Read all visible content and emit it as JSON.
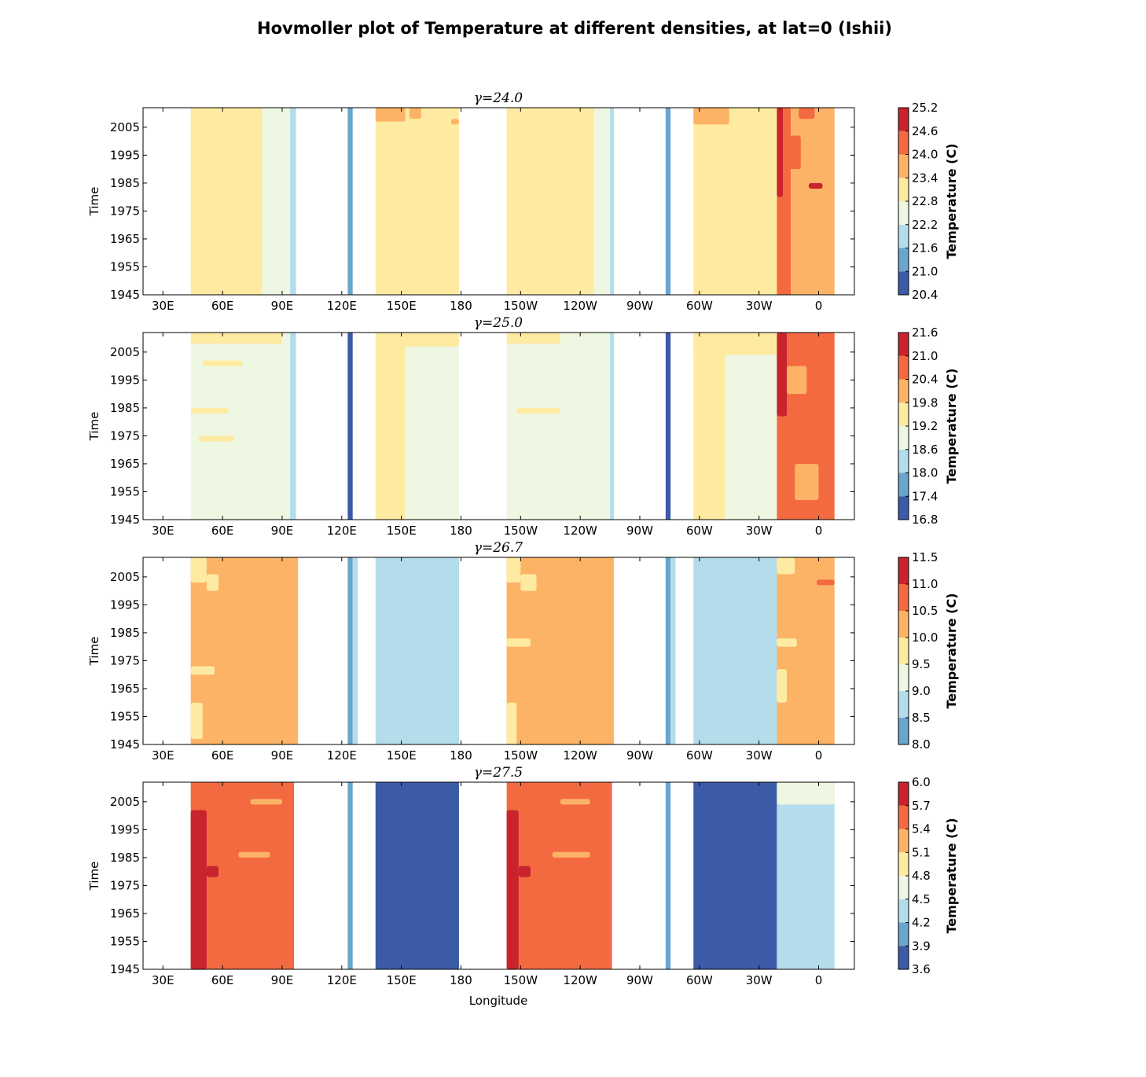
{
  "title": "Hovmoller plot of Temperature at different densities, at lat=0 (Ishii)",
  "colors": [
    "#3b5ba6",
    "#6aa5cd",
    "#b4ddeb",
    "#eef7e2",
    "#feeba1",
    "#fdb366",
    "#f36a41",
    "#c9242d"
  ],
  "chart_data": [
    {
      "type": "heatmap",
      "title": "γ=24.0",
      "xlabel": "",
      "ylabel": "Time",
      "x_ticks": [
        "30E",
        "60E",
        "90E",
        "120E",
        "150E",
        "180",
        "150W",
        "120W",
        "90W",
        "60W",
        "30W",
        "0"
      ],
      "y_ticks": [
        "1945",
        "1955",
        "1965",
        "1975",
        "1985",
        "1995",
        "2005"
      ],
      "colorbar": {
        "label": "Temperature (C)",
        "levels": [
          "20.4",
          "21.0",
          "21.6",
          "22.2",
          "22.8",
          "23.4",
          "24.0",
          "24.6",
          "25.2"
        ]
      },
      "bands": [
        {
          "lon": [
            44,
            80
          ],
          "level": 4
        },
        {
          "lon": [
            80,
            94
          ],
          "level": 3
        },
        {
          "lon": [
            94,
            97
          ],
          "level": 2
        },
        {
          "lon": [
            123,
            125.5
          ],
          "level": 1
        },
        {
          "lon": [
            137,
            179
          ],
          "level": 4
        },
        {
          "lon": [
            203,
            247
          ],
          "level": 4
        },
        {
          "lon": [
            247,
            255
          ],
          "level": 3
        },
        {
          "lon": [
            255,
            257
          ],
          "level": 2
        },
        {
          "lon": [
            283,
            285.5
          ],
          "level": 1
        },
        {
          "lon": [
            297,
            339
          ],
          "level": 4
        },
        {
          "lon": [
            339,
            346
          ],
          "level": 6
        },
        {
          "lon": [
            346,
            368
          ],
          "level": 5
        }
      ],
      "patches": [
        {
          "lon": [
            137,
            152
          ],
          "time": [
            2007,
            2012
          ],
          "level": 5
        },
        {
          "lon": [
            154,
            160
          ],
          "time": [
            2008,
            2012
          ],
          "level": 5
        },
        {
          "lon": [
            175,
            179
          ],
          "time": [
            2006,
            2008
          ],
          "level": 5
        },
        {
          "lon": [
            297,
            315
          ],
          "time": [
            2006,
            2012
          ],
          "level": 5
        },
        {
          "lon": [
            339,
            342
          ],
          "time": [
            1980,
            2012
          ],
          "level": 7
        },
        {
          "lon": [
            345,
            351
          ],
          "time": [
            1990,
            2002
          ],
          "level": 6
        },
        {
          "lon": [
            350,
            358
          ],
          "time": [
            2008,
            2012
          ],
          "level": 6
        },
        {
          "lon": [
            355,
            362
          ],
          "time": [
            1983,
            1985
          ],
          "level": 7
        }
      ]
    },
    {
      "type": "heatmap",
      "title": "γ=25.0",
      "xlabel": "",
      "ylabel": "Time",
      "x_ticks": [
        "30E",
        "60E",
        "90E",
        "120E",
        "150E",
        "180",
        "150W",
        "120W",
        "90W",
        "60W",
        "30W",
        "0"
      ],
      "y_ticks": [
        "1945",
        "1955",
        "1965",
        "1975",
        "1985",
        "1995",
        "2005"
      ],
      "colorbar": {
        "label": "Temperature (C)",
        "levels": [
          "16.8",
          "17.4",
          "18.0",
          "18.6",
          "19.2",
          "19.8",
          "20.4",
          "21.0",
          "21.6"
        ]
      },
      "bands": [
        {
          "lon": [
            44,
            94
          ],
          "level": 3
        },
        {
          "lon": [
            94,
            97
          ],
          "level": 2
        },
        {
          "lon": [
            123,
            125.5
          ],
          "level": 0
        },
        {
          "lon": [
            137,
            152
          ],
          "level": 4
        },
        {
          "lon": [
            152,
            179
          ],
          "level": 3
        },
        {
          "lon": [
            203,
            255
          ],
          "level": 3
        },
        {
          "lon": [
            255,
            257
          ],
          "level": 2
        },
        {
          "lon": [
            283,
            285.5
          ],
          "level": 0
        },
        {
          "lon": [
            297,
            313
          ],
          "level": 4
        },
        {
          "lon": [
            313,
            339
          ],
          "level": 3
        },
        {
          "lon": [
            339,
            368
          ],
          "level": 6
        }
      ],
      "patches": [
        {
          "lon": [
            44,
            90
          ],
          "time": [
            2008,
            2012
          ],
          "level": 4
        },
        {
          "lon": [
            50,
            70
          ],
          "time": [
            2000,
            2002
          ],
          "level": 4
        },
        {
          "lon": [
            44,
            63
          ],
          "time": [
            1983,
            1985
          ],
          "level": 4
        },
        {
          "lon": [
            48,
            66
          ],
          "time": [
            1973,
            1975
          ],
          "level": 4
        },
        {
          "lon": [
            137,
            179
          ],
          "time": [
            2007,
            2012
          ],
          "level": 4
        },
        {
          "lon": [
            203,
            230
          ],
          "time": [
            2008,
            2012
          ],
          "level": 4
        },
        {
          "lon": [
            208,
            230
          ],
          "time": [
            1983,
            1985
          ],
          "level": 4
        },
        {
          "lon": [
            297,
            339
          ],
          "time": [
            2004,
            2012
          ],
          "level": 4
        },
        {
          "lon": [
            339,
            344
          ],
          "time": [
            1982,
            2012
          ],
          "level": 7
        },
        {
          "lon": [
            344,
            354
          ],
          "time": [
            1990,
            2000
          ],
          "level": 5
        },
        {
          "lon": [
            348,
            360
          ],
          "time": [
            1952,
            1965
          ],
          "level": 5
        }
      ]
    },
    {
      "type": "heatmap",
      "title": "γ=26.7",
      "xlabel": "",
      "ylabel": "Time",
      "x_ticks": [
        "30E",
        "60E",
        "90E",
        "120E",
        "150E",
        "180",
        "150W",
        "120W",
        "90W",
        "60W",
        "30W",
        "0"
      ],
      "y_ticks": [
        "1945",
        "1955",
        "1965",
        "1975",
        "1985",
        "1995",
        "2005"
      ],
      "colorbar": {
        "label": "Temperature (C)",
        "levels": [
          "8.0",
          "8.5",
          "9.0",
          "9.5",
          "10.0",
          "10.5",
          "11.0",
          "11.5"
        ]
      },
      "bands": [
        {
          "lon": [
            44,
            98
          ],
          "level": 5
        },
        {
          "lon": [
            123,
            125.5
          ],
          "level": 1
        },
        {
          "lon": [
            125.5,
            128
          ],
          "level": 2
        },
        {
          "lon": [
            137,
            179
          ],
          "level": 2
        },
        {
          "lon": [
            203,
            257
          ],
          "level": 5
        },
        {
          "lon": [
            283,
            285.5
          ],
          "level": 1
        },
        {
          "lon": [
            285.5,
            288
          ],
          "level": 2
        },
        {
          "lon": [
            297,
            339
          ],
          "level": 2
        },
        {
          "lon": [
            339,
            368
          ],
          "level": 5
        }
      ],
      "patches": [
        {
          "lon": [
            44,
            52
          ],
          "time": [
            2003,
            2012
          ],
          "level": 4
        },
        {
          "lon": [
            52,
            58
          ],
          "time": [
            2000,
            2006
          ],
          "level": 4
        },
        {
          "lon": [
            44,
            50
          ],
          "time": [
            1947,
            1960
          ],
          "level": 4
        },
        {
          "lon": [
            44,
            56
          ],
          "time": [
            1970,
            1973
          ],
          "level": 4
        },
        {
          "lon": [
            203,
            210
          ],
          "time": [
            2003,
            2012
          ],
          "level": 4
        },
        {
          "lon": [
            210,
            218
          ],
          "time": [
            2000,
            2006
          ],
          "level": 4
        },
        {
          "lon": [
            203,
            208
          ],
          "time": [
            1945,
            1960
          ],
          "level": 4
        },
        {
          "lon": [
            203,
            215
          ],
          "time": [
            1980,
            1983
          ],
          "level": 4
        },
        {
          "lon": [
            339,
            348
          ],
          "time": [
            2006,
            2012
          ],
          "level": 4
        },
        {
          "lon": [
            339,
            349
          ],
          "time": [
            1980,
            1983
          ],
          "level": 4
        },
        {
          "lon": [
            339,
            344
          ],
          "time": [
            1960,
            1972
          ],
          "level": 4
        },
        {
          "lon": [
            359,
            368
          ],
          "time": [
            2002,
            2004
          ],
          "level": 6
        }
      ]
    },
    {
      "type": "heatmap",
      "title": "γ=27.5",
      "xlabel": "Longitude",
      "ylabel": "Time",
      "x_ticks": [
        "30E",
        "60E",
        "90E",
        "120E",
        "150E",
        "180",
        "150W",
        "120W",
        "90W",
        "60W",
        "30W",
        "0"
      ],
      "y_ticks": [
        "1945",
        "1955",
        "1965",
        "1975",
        "1985",
        "1995",
        "2005"
      ],
      "colorbar": {
        "label": "Temperature (C)",
        "levels": [
          "3.6",
          "3.9",
          "4.2",
          "4.5",
          "4.8",
          "5.1",
          "5.4",
          "5.7",
          "6.0"
        ]
      },
      "bands": [
        {
          "lon": [
            44,
            96
          ],
          "level": 6
        },
        {
          "lon": [
            123,
            125.5
          ],
          "level": 1
        },
        {
          "lon": [
            137,
            179
          ],
          "level": 0
        },
        {
          "lon": [
            203,
            256
          ],
          "level": 6
        },
        {
          "lon": [
            283,
            285.5
          ],
          "level": 1
        },
        {
          "lon": [
            297,
            339
          ],
          "level": 0
        },
        {
          "lon": [
            339,
            368
          ],
          "level": 2
        }
      ],
      "patches": [
        {
          "lon": [
            44,
            52
          ],
          "time": [
            1945,
            2002
          ],
          "level": 7
        },
        {
          "lon": [
            52,
            58
          ],
          "time": [
            1978,
            1982
          ],
          "level": 7
        },
        {
          "lon": [
            203,
            209
          ],
          "time": [
            1945,
            2002
          ],
          "level": 7
        },
        {
          "lon": [
            209,
            215
          ],
          "time": [
            1978,
            1982
          ],
          "level": 7
        },
        {
          "lon": [
            74,
            90
          ],
          "time": [
            2004,
            2006
          ],
          "level": 5
        },
        {
          "lon": [
            68,
            84
          ],
          "time": [
            1985,
            1987
          ],
          "level": 5
        },
        {
          "lon": [
            230,
            245
          ],
          "time": [
            2004,
            2006
          ],
          "level": 5
        },
        {
          "lon": [
            226,
            245
          ],
          "time": [
            1985,
            1987
          ],
          "level": 5
        },
        {
          "lon": [
            339,
            368
          ],
          "time": [
            2004,
            2012
          ],
          "level": 3
        }
      ]
    }
  ]
}
